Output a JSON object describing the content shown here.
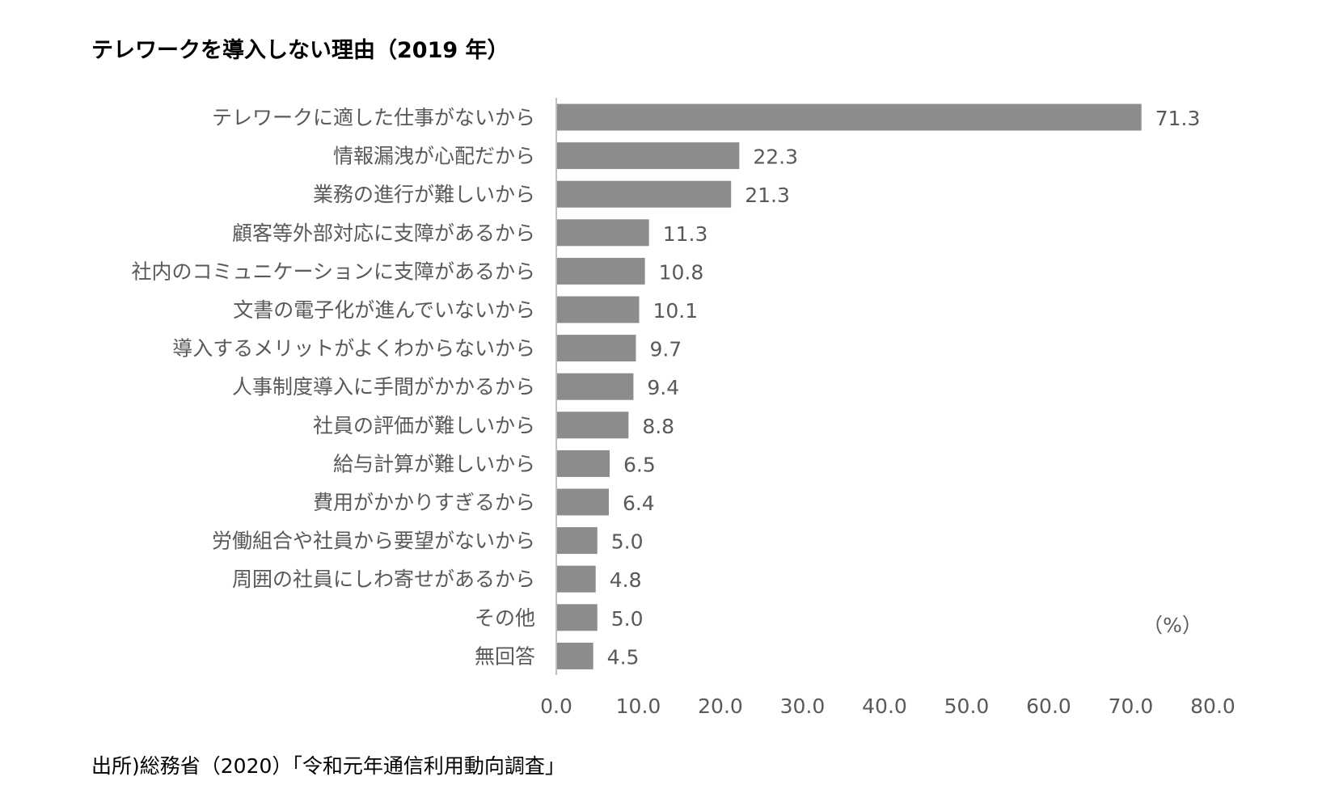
{
  "title": "テレワークを導入しない理由（2019 年）",
  "source": "出所)総務省（2020）「令和元年通信利用動向調査」",
  "colors": {
    "bar": "#8c8c8c",
    "axis": "#bfbfbf",
    "text": "#595959",
    "title": "#000000"
  },
  "chart_data": {
    "type": "bar",
    "orientation": "horizontal",
    "unit_label": "（%）",
    "xlim": [
      0,
      80
    ],
    "x_ticks": [
      "0.0",
      "10.0",
      "20.0",
      "30.0",
      "40.0",
      "50.0",
      "60.0",
      "70.0",
      "80.0"
    ],
    "grid": false,
    "categories": [
      "テレワークに適した仕事がないから",
      "情報漏洩が心配だから",
      "業務の進行が難しいから",
      "顧客等外部対応に支障があるから",
      "社内のコミュニケーションに支障があるから",
      "文書の電子化が進んでいないから",
      "導入するメリットがよくわからないから",
      "人事制度導入に手間がかかるから",
      "社員の評価が難しいから",
      "給与計算が難しいから",
      "費用がかかりすぎるから",
      "労働組合や社員から要望がないから",
      "周囲の社員にしわ寄せがあるから",
      "その他",
      "無回答"
    ],
    "values": [
      71.3,
      22.3,
      21.3,
      11.3,
      10.8,
      10.1,
      9.7,
      9.4,
      8.8,
      6.5,
      6.4,
      5.0,
      4.8,
      5.0,
      4.5
    ],
    "value_labels": [
      "71.3",
      "22.3",
      "21.3",
      "11.3",
      "10.8",
      "10.1",
      "9.7",
      "9.4",
      "8.8",
      "6.5",
      "6.4",
      "5.0",
      "4.8",
      "5.0",
      "4.5"
    ]
  }
}
